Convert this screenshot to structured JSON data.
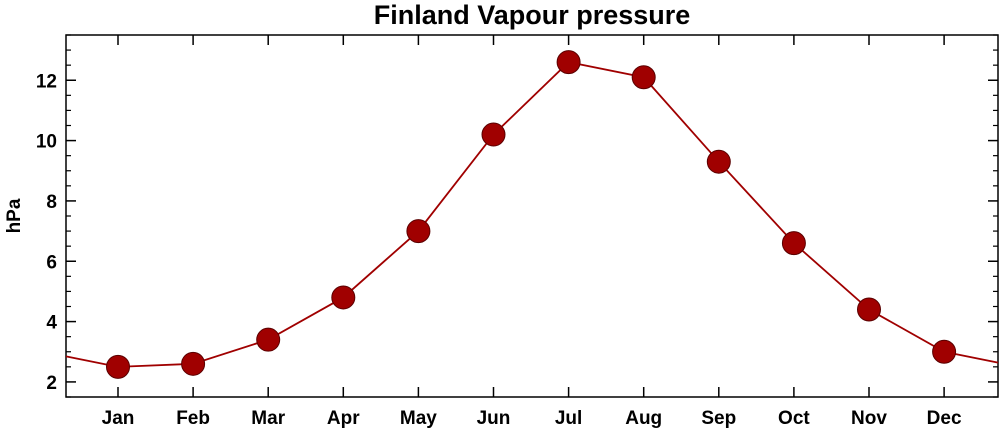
{
  "chart_data": {
    "type": "line",
    "title": "Finland Vapour pressure",
    "xlabel": "",
    "ylabel": "hPa",
    "categories": [
      "Jan",
      "Feb",
      "Mar",
      "Apr",
      "May",
      "Jun",
      "Jul",
      "Aug",
      "Sep",
      "Oct",
      "Nov",
      "Dec"
    ],
    "series": [
      {
        "values": [
          2.5,
          2.6,
          3.4,
          4.8,
          7.0,
          10.2,
          12.6,
          12.1,
          9.3,
          6.6,
          4.4,
          3.0
        ]
      }
    ],
    "ylim": [
      1.5,
      13.5
    ],
    "yticks": [
      2,
      4,
      6,
      8,
      10,
      12
    ],
    "color": "#a00000",
    "grid": false,
    "legend": "none"
  }
}
